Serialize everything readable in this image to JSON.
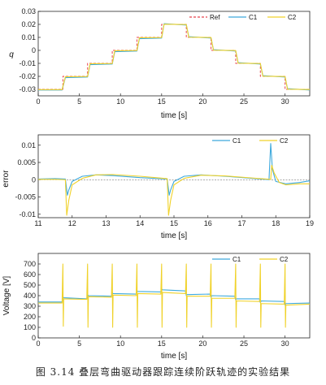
{
  "caption": "图 3.14 叠层弯曲驱动器跟踪连续阶跃轨迹的实验结果",
  "colors": {
    "ref": "#e8454d",
    "c1": "#3da9dc",
    "c2": "#f0d22a",
    "axis": "#262626",
    "zero": "#555555"
  },
  "chart_data": [
    {
      "type": "line",
      "xlabel": "time [s]",
      "ylabel": "q",
      "xlim": [
        0,
        33
      ],
      "ylim": [
        -0.035,
        0.03
      ],
      "xticks": [
        0,
        5,
        10,
        15,
        20,
        25,
        30
      ],
      "yticks": [
        -0.03,
        -0.02,
        -0.01,
        0,
        0.01,
        0.02,
        0.03
      ],
      "ytick_labels": [
        "-0.03",
        "-0.02",
        "-0.01",
        "0",
        "0.01",
        "0.02",
        "0.03"
      ],
      "legend_position": "top-right",
      "series": [
        {
          "name": "Ref",
          "style": "dashed",
          "x": [
            0,
            3,
            3,
            6,
            6,
            9,
            9,
            12,
            12,
            15,
            15,
            18,
            18,
            21,
            21,
            24,
            24,
            27,
            27,
            30,
            30,
            33
          ],
          "y": [
            -0.03,
            -0.03,
            -0.02,
            -0.02,
            -0.01,
            -0.01,
            0,
            0,
            0.01,
            0.01,
            0.02,
            0.02,
            0.01,
            0.01,
            0,
            0,
            -0.01,
            -0.01,
            -0.02,
            -0.02,
            -0.03,
            -0.03
          ]
        },
        {
          "name": "C1",
          "x": [
            0,
            2.9,
            3.3,
            6,
            6.3,
            9,
            9.3,
            12,
            12.3,
            15,
            15.3,
            18,
            18.3,
            21,
            21.3,
            24,
            24.3,
            27,
            27.3,
            30,
            30.3,
            33
          ],
          "y": [
            -0.0305,
            -0.0305,
            -0.021,
            -0.0205,
            -0.011,
            -0.0105,
            -0.001,
            -0.0005,
            0.009,
            0.0095,
            0.0205,
            0.0195,
            0.0105,
            0.0095,
            0.0005,
            -0.0005,
            -0.0095,
            -0.0105,
            -0.0195,
            -0.0205,
            -0.0295,
            -0.0305
          ]
        },
        {
          "name": "C2",
          "x": [
            0,
            2.9,
            3.3,
            6,
            6.3,
            9,
            9.3,
            12,
            12.3,
            15,
            15.3,
            18,
            18.3,
            21,
            21.3,
            24,
            24.3,
            27,
            27.3,
            30,
            30.3,
            33
          ],
          "y": [
            -0.0302,
            -0.0302,
            -0.0203,
            -0.0201,
            -0.0103,
            -0.0101,
            -0.0003,
            -0.0001,
            0.0097,
            0.0099,
            0.0201,
            0.0199,
            0.0101,
            0.0099,
            0.0001,
            -0.0001,
            -0.0099,
            -0.0101,
            -0.0199,
            -0.0201,
            -0.0299,
            -0.0301
          ]
        }
      ]
    },
    {
      "type": "line",
      "xlabel": "time [s]",
      "ylabel": "error",
      "xlim": [
        11,
        19
      ],
      "ylim": [
        -0.011,
        0.013
      ],
      "xticks": [
        11,
        12,
        13,
        14,
        15,
        16,
        17,
        18,
        19
      ],
      "yticks": [
        -0.01,
        -0.005,
        0,
        0.005,
        0.01
      ],
      "ytick_labels": [
        "-0.01",
        "-0.005",
        "0",
        "0.005",
        "0.01"
      ],
      "legend_position": "top-right",
      "series": [
        {
          "name": "C1",
          "x": [
            11,
            11.5,
            11.8,
            11.86,
            11.9,
            12.0,
            12.3,
            12.7,
            13.2,
            14.0,
            14.8,
            14.86,
            14.9,
            15.0,
            15.3,
            15.8,
            16.5,
            17.3,
            17.8,
            17.85,
            17.9,
            18.0,
            18.3,
            18.7,
            19
          ],
          "y": [
            0.0002,
            0.0003,
            0.0002,
            -0.0045,
            -0.003,
            -0.0005,
            0.001,
            0.0014,
            0.0012,
            0.0006,
            0.0002,
            -0.0045,
            -0.003,
            -0.0005,
            0.001,
            0.0014,
            0.001,
            0.0004,
            0.0,
            0.0105,
            0.003,
            -0.0005,
            -0.0012,
            -0.0008,
            -0.0003
          ]
        },
        {
          "name": "C2",
          "x": [
            11,
            11.5,
            11.8,
            11.84,
            11.9,
            12.0,
            12.3,
            12.7,
            13.2,
            14.0,
            14.8,
            14.84,
            14.9,
            15.0,
            15.3,
            15.8,
            16.5,
            17.3,
            17.85,
            17.88,
            17.95,
            18.1,
            18.3,
            18.7,
            19
          ],
          "y": [
            0.0001,
            0.0001,
            0.0,
            -0.0103,
            -0.006,
            -0.0015,
            0.0004,
            0.0014,
            0.0015,
            0.001,
            0.0003,
            -0.0103,
            -0.006,
            -0.0015,
            0.0004,
            0.0013,
            0.0011,
            0.0005,
            0.0001,
            0.0042,
            0.002,
            -0.0008,
            -0.0015,
            -0.0012,
            -0.0012
          ]
        }
      ]
    },
    {
      "type": "line",
      "xlabel": "time [s]",
      "ylabel": "Voltage [V]",
      "xlim": [
        0,
        33
      ],
      "ylim": [
        0,
        800
      ],
      "xticks": [
        0,
        5,
        10,
        15,
        20,
        25,
        30
      ],
      "yticks": [
        0,
        100,
        200,
        300,
        400,
        500,
        600,
        700
      ],
      "ytick_labels": [
        "0",
        "100",
        "200",
        "300",
        "400",
        "500",
        "600",
        "700"
      ],
      "legend_position": "top-right",
      "series": [
        {
          "name": "C1",
          "x": [
            0,
            2.9,
            3.0,
            3.1,
            5.9,
            6.0,
            6.1,
            8.9,
            9.0,
            9.1,
            11.9,
            12.0,
            12.1,
            14.9,
            15.0,
            15.1,
            17.9,
            18.0,
            18.1,
            20.9,
            21.0,
            21.1,
            23.9,
            24.0,
            24.1,
            26.9,
            27.0,
            27.1,
            29.9,
            30.0,
            30.1,
            33
          ],
          "y": [
            340,
            340,
            390,
            380,
            370,
            410,
            400,
            395,
            430,
            420,
            415,
            445,
            440,
            435,
            465,
            455,
            445,
            400,
            410,
            415,
            385,
            400,
            395,
            360,
            370,
            370,
            335,
            350,
            345,
            310,
            325,
            330
          ]
        },
        {
          "name": "C2",
          "x": [
            0,
            2.9,
            3.0,
            3.05,
            3.1,
            5.9,
            6.0,
            6.05,
            6.1,
            8.9,
            9.0,
            9.05,
            9.1,
            11.9,
            12.0,
            12.05,
            12.1,
            14.9,
            15.0,
            15.05,
            15.1,
            17.9,
            18.0,
            18.05,
            18.1,
            20.9,
            21.0,
            21.05,
            21.1,
            23.9,
            24.0,
            24.05,
            24.1,
            26.9,
            27.0,
            27.05,
            27.1,
            29.9,
            30.0,
            30.05,
            30.1,
            33
          ],
          "y": [
            330,
            330,
            700,
            110,
            370,
            365,
            700,
            100,
            390,
            385,
            700,
            100,
            405,
            400,
            700,
            100,
            420,
            415,
            700,
            100,
            430,
            420,
            700,
            100,
            395,
            395,
            700,
            100,
            375,
            375,
            700,
            100,
            350,
            345,
            700,
            100,
            325,
            320,
            700,
            100,
            310,
            320
          ]
        }
      ]
    }
  ]
}
